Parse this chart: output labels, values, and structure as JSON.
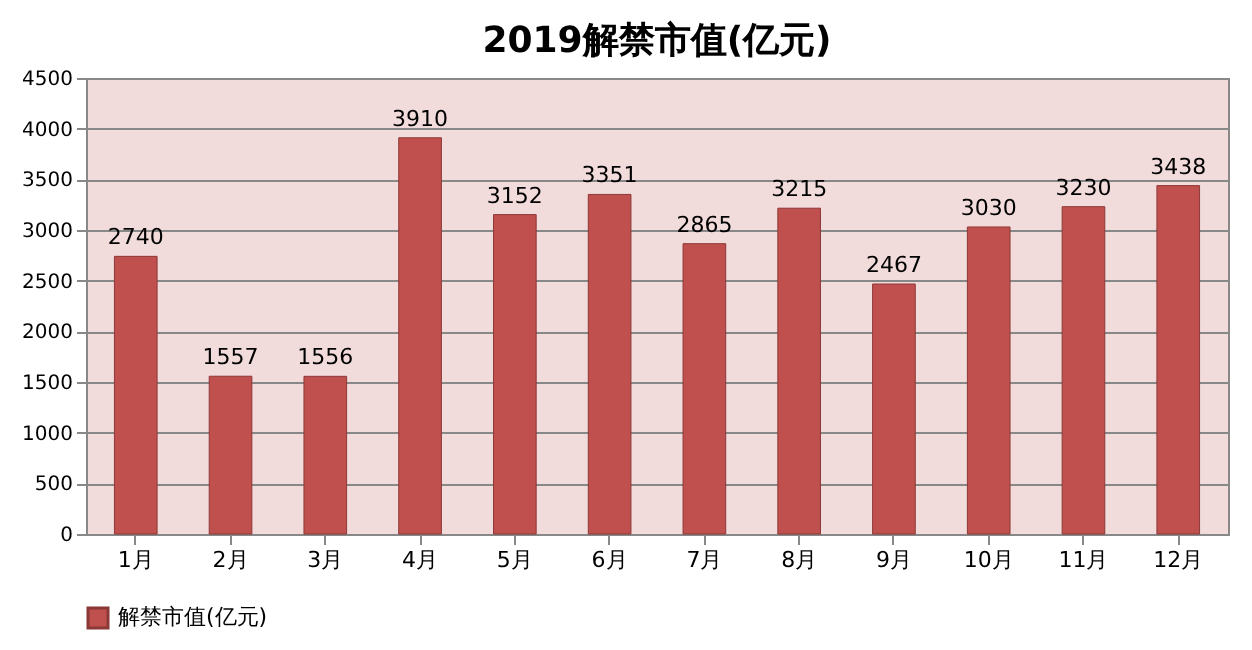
{
  "chart_data": {
    "type": "bar",
    "title": "2019解禁市值(亿元)",
    "categories": [
      "1月",
      "2月",
      "3月",
      "4月",
      "5月",
      "6月",
      "7月",
      "8月",
      "9月",
      "10月",
      "11月",
      "12月"
    ],
    "series": [
      {
        "name": "解禁市值(亿元)",
        "color": "#c0504d",
        "values": [
          2740,
          1557,
          1556,
          3910,
          3152,
          3351,
          2865,
          3215,
          2467,
          3030,
          3230,
          3438
        ]
      }
    ],
    "ylim": [
      0,
      4500
    ],
    "yticks": [
      0,
      500,
      1000,
      1500,
      2000,
      2500,
      3000,
      3500,
      4000,
      4500
    ],
    "grid": "y",
    "legend": "bottom",
    "data_labels": true
  }
}
